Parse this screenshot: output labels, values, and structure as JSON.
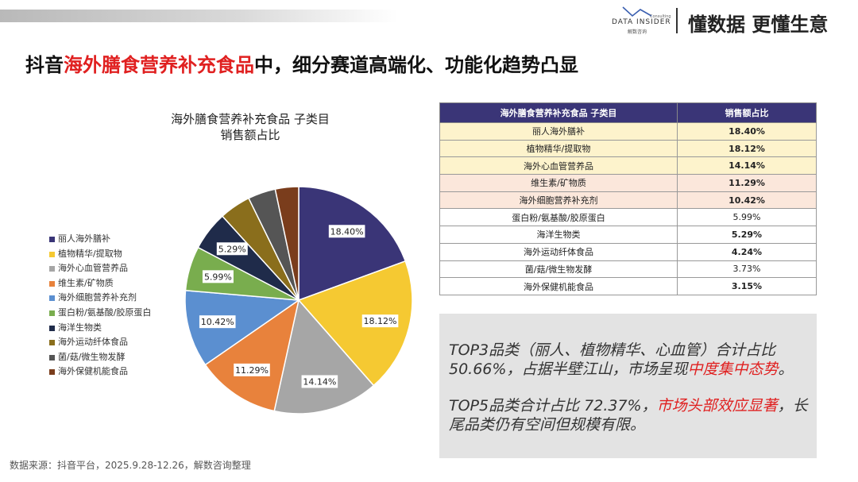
{
  "header": {
    "logo_name": "DATA INSIDER",
    "logo_consulting": "Consulting",
    "logo_sub": "解数咨询",
    "slogan": "懂数据 更懂生意"
  },
  "headline": {
    "prefix": "抖音",
    "highlight": "海外膳食营养补充食品",
    "suffix": "中，细分赛道高端化、功能化趋势凸显"
  },
  "chart_data": {
    "type": "pie",
    "title_line1": "海外膳食营养补充食品 子类目",
    "title_line2": "销售额占比",
    "categories": [
      "丽人海外膳补",
      "植物精华/提取物",
      "海外心血管营养品",
      "维生素/矿物质",
      "海外细胞营养补充剂",
      "蛋白粉/氨基酸/胶原蛋白",
      "海洋生物类",
      "海外运动纤体食品",
      "菌/菇/微生物发酵",
      "海外保健机能食品"
    ],
    "values": [
      18.4,
      18.12,
      14.14,
      11.29,
      10.42,
      5.99,
      5.29,
      4.24,
      3.73,
      3.15
    ],
    "labels": [
      "18.40%",
      "18.12%",
      "14.14%",
      "11.29%",
      "10.42%",
      "5.99%",
      "5.29%",
      "",
      "",
      ""
    ],
    "colors": [
      "#3a3577",
      "#f5c932",
      "#a6a6a6",
      "#e8823c",
      "#5b8fd0",
      "#79ad4e",
      "#1f2b4a",
      "#8a6e1c",
      "#555555",
      "#7a3d1c"
    ],
    "legend_position": "left"
  },
  "table": {
    "col1": "海外膳食营养补充食品 子类目",
    "col2": "销售额占比",
    "rows": [
      {
        "name": "丽人海外膳补",
        "value": "18.40%"
      },
      {
        "name": "植物精华/提取物",
        "value": "18.12%"
      },
      {
        "name": "海外心血管营养品",
        "value": "14.14%"
      },
      {
        "name": "维生素/矿物质",
        "value": "11.29%"
      },
      {
        "name": "海外细胞营养补充剂",
        "value": "10.42%"
      },
      {
        "name": "蛋白粉/氨基酸/胶原蛋白",
        "value": "5.99%"
      },
      {
        "name": "海洋生物类",
        "value": "5.29%"
      },
      {
        "name": "海外运动纤体食品",
        "value": "4.24%"
      },
      {
        "name": "菌/菇/微生物发酵",
        "value": "3.73%"
      },
      {
        "name": "海外保健机能食品",
        "value": "3.15%"
      }
    ]
  },
  "insight": {
    "p1_a": "TOP3品类（丽人、植物精华、心血管）合计占比50.66%，占据半壁江山，市场呈现",
    "p1_red": "中度集中态势",
    "p1_end": "。",
    "p2_a": "TOP5品类合计占比 72.37%，",
    "p2_red": "市场头部效应显著",
    "p2_end": "，长尾品类仍有空间但规模有限。"
  },
  "source": "数据来源：抖音平台，2025.9.28-12.26，解数咨询整理"
}
